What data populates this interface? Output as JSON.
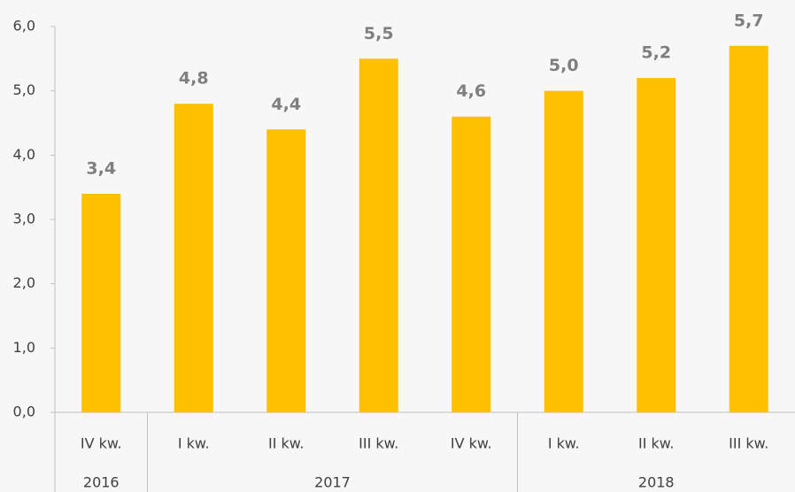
{
  "chart_data": {
    "type": "bar",
    "categories": [
      "IV kw.",
      "I kw.",
      "II kw.",
      "III kw.",
      "IV kw.",
      "I kw.",
      "II kw.",
      "III kw."
    ],
    "groups": [
      {
        "label": "2016",
        "span": 1
      },
      {
        "label": "2017",
        "span": 4
      },
      {
        "label": "2018",
        "span": 3
      }
    ],
    "values": [
      3.4,
      4.8,
      4.4,
      5.5,
      4.6,
      5.0,
      5.2,
      5.7
    ],
    "value_labels": [
      "3,4",
      "4,8",
      "4,4",
      "5,5",
      "4,6",
      "5,0",
      "5,2",
      "5,7"
    ],
    "color": "#ffc000",
    "ylim": [
      0,
      6
    ],
    "yticks": [
      {
        "value": 0,
        "label": "0,0"
      },
      {
        "value": 1,
        "label": "1,0"
      },
      {
        "value": 2,
        "label": "2,0"
      },
      {
        "value": 3,
        "label": "3,0"
      },
      {
        "value": 4,
        "label": "4,0"
      },
      {
        "value": 5,
        "label": "5,0"
      },
      {
        "value": 6,
        "label": "6,0"
      }
    ],
    "grid": false
  }
}
